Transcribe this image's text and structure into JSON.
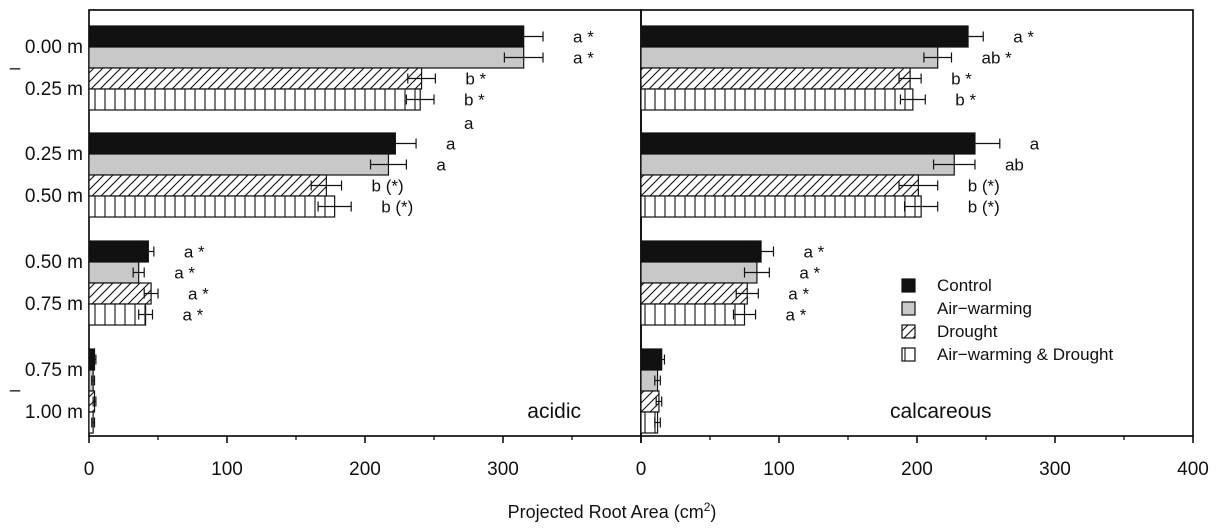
{
  "chart_data": {
    "type": "bar",
    "orientation": "horizontal",
    "xlabel_main": "Projected Root Area (cm",
    "xlabel_sup": "2",
    "xlabel_end": ")",
    "xlim": [
      0,
      400
    ],
    "xticks": [
      "0",
      "100",
      "200",
      "300",
      "400"
    ],
    "depth_groups": [
      {
        "top": "0.00 m",
        "dash": "–",
        "bottom": "0.25 m"
      },
      {
        "top": "0.25 m",
        "dash": "",
        "bottom": "0.50 m"
      },
      {
        "top": "0.50 m",
        "dash": "",
        "bottom": "0.75 m"
      },
      {
        "top": "0.75 m",
        "dash": "–",
        "bottom": "1.00 m"
      }
    ],
    "legend": [
      {
        "name": "Control",
        "pattern": "solid"
      },
      {
        "name": "Air−warming",
        "pattern": "gray"
      },
      {
        "name": "Drought",
        "pattern": "diag"
      },
      {
        "name": "Air−warming & Drought",
        "pattern": "vert"
      }
    ],
    "panels": [
      {
        "label": "acidic",
        "groups": [
          {
            "values": [
              315,
              315,
              241,
              240
            ],
            "errors": [
              14,
              14,
              10,
              10
            ],
            "letters": [
              "a *",
              "a *",
              "b *",
              "b *"
            ]
          },
          {
            "values": [
              222,
              217,
              172,
              178
            ],
            "errors": [
              15,
              13,
              11,
              12
            ],
            "letters": [
              "a",
              "a",
              "b (*)",
              "b (*)"
            ]
          },
          {
            "values": [
              43,
              36,
              45,
              41
            ],
            "errors": [
              4,
              4,
              5,
              5
            ],
            "letters": [
              "a *",
              "a *",
              "a *",
              "a *"
            ]
          },
          {
            "values": [
              4,
              3,
              4,
              3
            ],
            "errors": [
              1,
              1,
              1,
              1
            ],
            "letters": [
              "",
              "",
              "",
              ""
            ]
          }
        ],
        "extra_label": "a"
      },
      {
        "label": "calcareous",
        "groups": [
          {
            "values": [
              237,
              215,
              195,
              197
            ],
            "errors": [
              11,
              10,
              8,
              9
            ],
            "letters": [
              "a *",
              "ab *",
              "b *",
              "b *"
            ]
          },
          {
            "values": [
              242,
              227,
              201,
              203
            ],
            "errors": [
              18,
              15,
              14,
              12
            ],
            "letters": [
              "a",
              "ab",
              "b (*)",
              "b (*)"
            ]
          },
          {
            "values": [
              87,
              84,
              77,
              75
            ],
            "errors": [
              9,
              9,
              8,
              8
            ],
            "letters": [
              "a *",
              "a *",
              "a *",
              "a *"
            ]
          },
          {
            "values": [
              15,
              12,
              13,
              12
            ],
            "errors": [
              2,
              2,
              2,
              2
            ],
            "letters": [
              "",
              "",
              "",
              ""
            ]
          }
        ],
        "extra_label": ""
      }
    ]
  }
}
